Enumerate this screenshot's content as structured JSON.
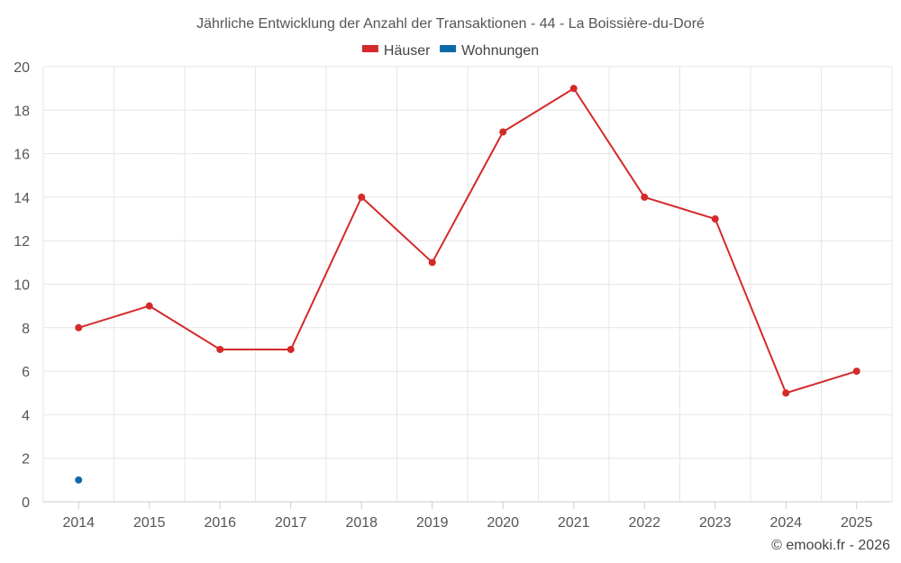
{
  "chart_data": {
    "type": "line",
    "title": "Jährliche Entwicklung der Anzahl der Transaktionen - 44 - La Boissière-du-Doré",
    "categories": [
      "2014",
      "2015",
      "2016",
      "2017",
      "2018",
      "2019",
      "2020",
      "2021",
      "2022",
      "2023",
      "2024",
      "2025"
    ],
    "series": [
      {
        "name": "Häuser",
        "color": "#d42a2a",
        "values": [
          8,
          9,
          7,
          7,
          14,
          11,
          17,
          19,
          14,
          13,
          5,
          6
        ]
      },
      {
        "name": "Wohnungen",
        "color": "#0c6aa6",
        "values": [
          1,
          null,
          null,
          null,
          null,
          null,
          null,
          null,
          null,
          null,
          null,
          null
        ]
      }
    ],
    "ylim": [
      0,
      20
    ],
    "yticks": [
      0,
      2,
      4,
      6,
      8,
      10,
      12,
      14,
      16,
      18,
      20
    ],
    "grid": true,
    "legend": "top-center",
    "xlabel": "",
    "ylabel": ""
  },
  "credit": "© emooki.fr - 2026"
}
